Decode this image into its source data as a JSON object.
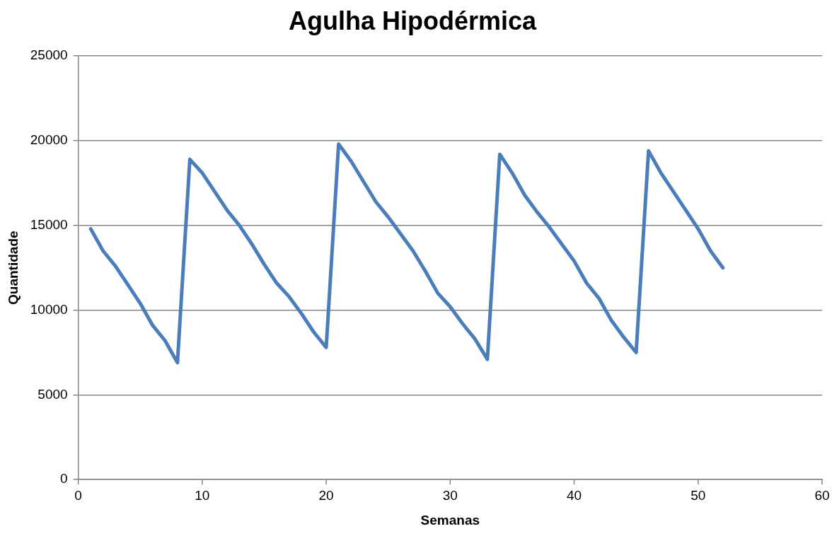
{
  "chart_data": {
    "type": "line",
    "title": "Agulha Hipodérmica",
    "xlabel": "Semanas",
    "ylabel": "Quantidade",
    "x": [
      1,
      2,
      3,
      4,
      5,
      6,
      7,
      8,
      9,
      10,
      11,
      12,
      13,
      14,
      15,
      16,
      17,
      18,
      19,
      20,
      21,
      22,
      23,
      24,
      25,
      26,
      27,
      28,
      29,
      30,
      31,
      32,
      33,
      34,
      35,
      36,
      37,
      38,
      39,
      40,
      41,
      42,
      43,
      44,
      45,
      46,
      47,
      48,
      49,
      50,
      51,
      52
    ],
    "series": [
      {
        "color": "#4a7ebb",
        "values": [
          14800,
          13500,
          12600,
          11500,
          10400,
          9100,
          8200,
          6900,
          18900,
          18100,
          17000,
          15900,
          15000,
          13900,
          12700,
          11600,
          10800,
          9800,
          8700,
          7800,
          19800,
          18800,
          17600,
          16400,
          15500,
          14500,
          13500,
          12300,
          11000,
          10200,
          9200,
          8300,
          7100,
          19200,
          18100,
          16800,
          15800,
          14900,
          13900,
          12900,
          11600,
          10700,
          9400,
          8400,
          7500,
          19400,
          18100,
          17000,
          15900,
          14800,
          13500,
          12500
        ]
      }
    ],
    "xlim": [
      0,
      60
    ],
    "xticks": [
      0,
      10,
      20,
      30,
      40,
      50,
      60
    ],
    "ylim": [
      0,
      25000
    ],
    "yticks": [
      0,
      5000,
      10000,
      15000,
      20000,
      25000
    ],
    "grid": "y",
    "legend": false,
    "marker": "none",
    "line_style": "solid"
  }
}
